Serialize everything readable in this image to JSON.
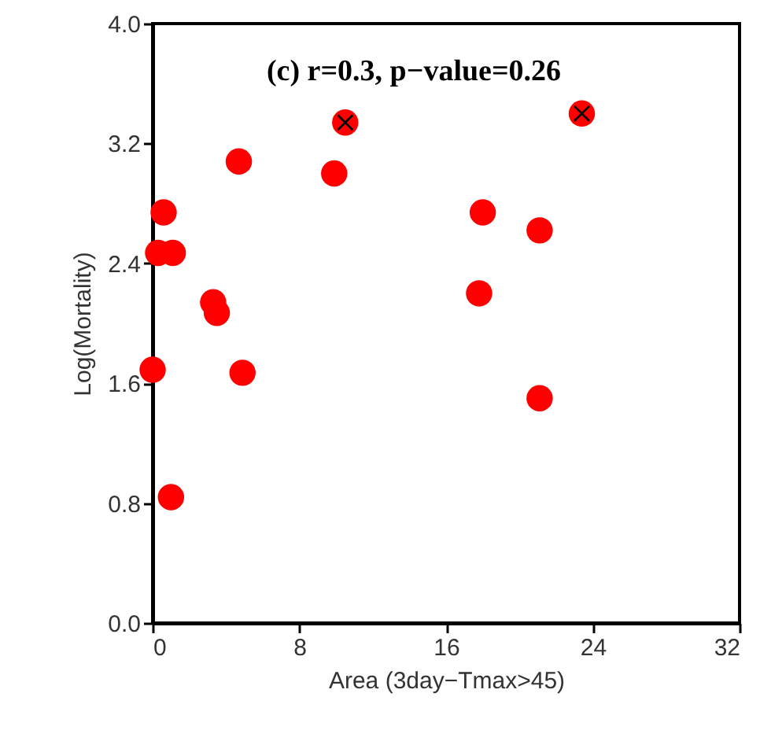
{
  "chart_data": {
    "type": "scatter",
    "annotations": [
      "(c) r=0.3, p−value=0.26"
    ],
    "xlabel": "Area (3day−Tmax>45)",
    "ylabel": "Log(Mortality)",
    "xlim": [
      0,
      32
    ],
    "xticks": [
      0,
      8,
      16,
      24,
      32
    ],
    "ylim": [
      0,
      4
    ],
    "yticks": [
      {
        "value": 0,
        "label": "0.0"
      },
      0.8,
      1.6,
      2.4,
      3.2,
      {
        "value": 4,
        "label": "4.0"
      }
    ],
    "grid": false,
    "series": [
      {
        "color": "#ff0000",
        "marker": "circle",
        "x": [
          0,
          0.3,
          0.6,
          1.1,
          1.0,
          3.3,
          3.5,
          4.7,
          4.9,
          9.9,
          10.5,
          17.8,
          18.0,
          21.1,
          21.1,
          23.4
        ],
        "values": [
          1.69,
          2.47,
          2.74,
          2.47,
          0.84,
          2.14,
          2.07,
          3.08,
          1.67,
          3.0,
          3.34,
          2.2,
          2.74,
          2.62,
          1.5,
          3.4
        ]
      },
      {
        "color": "#000000",
        "marker": "cross",
        "x": [
          10.5,
          23.4
        ],
        "values": [
          3.34,
          3.4
        ]
      }
    ]
  }
}
